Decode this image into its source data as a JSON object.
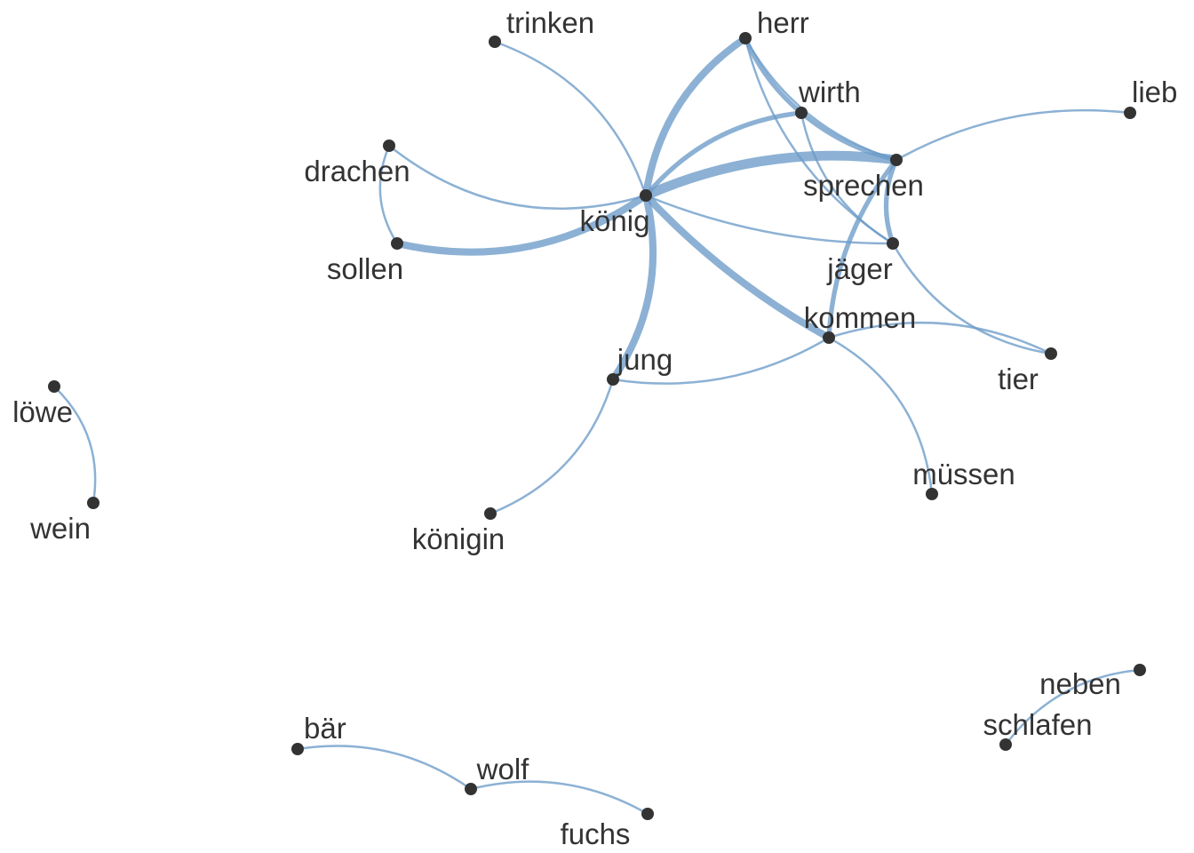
{
  "diagram": {
    "type": "word-cooccurrence-network",
    "edge_color": "#6b9bc8",
    "node_color": "#333333",
    "label_color": "#333333",
    "nodes": [
      {
        "id": "trinken",
        "label": "trinken"
      },
      {
        "id": "herr",
        "label": "herr"
      },
      {
        "id": "wirth",
        "label": "wirth"
      },
      {
        "id": "lieb",
        "label": "lieb"
      },
      {
        "id": "drachen",
        "label": "drachen"
      },
      {
        "id": "sprechen",
        "label": "sprechen"
      },
      {
        "id": "koenig",
        "label": "könig"
      },
      {
        "id": "sollen",
        "label": "sollen"
      },
      {
        "id": "jaeger",
        "label": "jäger"
      },
      {
        "id": "kommen",
        "label": "kommen"
      },
      {
        "id": "jung",
        "label": "jung"
      },
      {
        "id": "tier",
        "label": "tier"
      },
      {
        "id": "loewe",
        "label": "löwe"
      },
      {
        "id": "muessen",
        "label": "müssen"
      },
      {
        "id": "wein",
        "label": "wein"
      },
      {
        "id": "koenigin",
        "label": "königin"
      },
      {
        "id": "neben",
        "label": "neben"
      },
      {
        "id": "baer",
        "label": "bär"
      },
      {
        "id": "schlafen",
        "label": "schlafen"
      },
      {
        "id": "wolf",
        "label": "wolf"
      },
      {
        "id": "fuchs",
        "label": "fuchs"
      }
    ],
    "edges": [
      {
        "from": "koenig",
        "to": "trinken",
        "weight": 1
      },
      {
        "from": "koenig",
        "to": "herr",
        "weight": 3
      },
      {
        "from": "koenig",
        "to": "wirth",
        "weight": 2
      },
      {
        "from": "koenig",
        "to": "sprechen",
        "weight": 4
      },
      {
        "from": "koenig",
        "to": "jaeger",
        "weight": 1
      },
      {
        "from": "koenig",
        "to": "kommen",
        "weight": 3
      },
      {
        "from": "koenig",
        "to": "jung",
        "weight": 3
      },
      {
        "from": "koenig",
        "to": "sollen",
        "weight": 3
      },
      {
        "from": "koenig",
        "to": "drachen",
        "weight": 1
      },
      {
        "from": "drachen",
        "to": "sollen",
        "weight": 1
      },
      {
        "from": "herr",
        "to": "wirth",
        "weight": 2
      },
      {
        "from": "herr",
        "to": "sprechen",
        "weight": 1
      },
      {
        "from": "herr",
        "to": "jaeger",
        "weight": 1
      },
      {
        "from": "wirth",
        "to": "sprechen",
        "weight": 2
      },
      {
        "from": "wirth",
        "to": "jaeger",
        "weight": 1
      },
      {
        "from": "sprechen",
        "to": "lieb",
        "weight": 1
      },
      {
        "from": "sprechen",
        "to": "jaeger",
        "weight": 2
      },
      {
        "from": "sprechen",
        "to": "kommen",
        "weight": 2
      },
      {
        "from": "jaeger",
        "to": "tier",
        "weight": 1
      },
      {
        "from": "kommen",
        "to": "tier",
        "weight": 1
      },
      {
        "from": "kommen",
        "to": "muessen",
        "weight": 1
      },
      {
        "from": "kommen",
        "to": "jung",
        "weight": 1
      },
      {
        "from": "jung",
        "to": "koenigin",
        "weight": 1
      },
      {
        "from": "loewe",
        "to": "wein",
        "weight": 1
      },
      {
        "from": "baer",
        "to": "wolf",
        "weight": 1
      },
      {
        "from": "wolf",
        "to": "fuchs",
        "weight": 1
      },
      {
        "from": "neben",
        "to": "schlafen",
        "weight": 1
      }
    ]
  }
}
